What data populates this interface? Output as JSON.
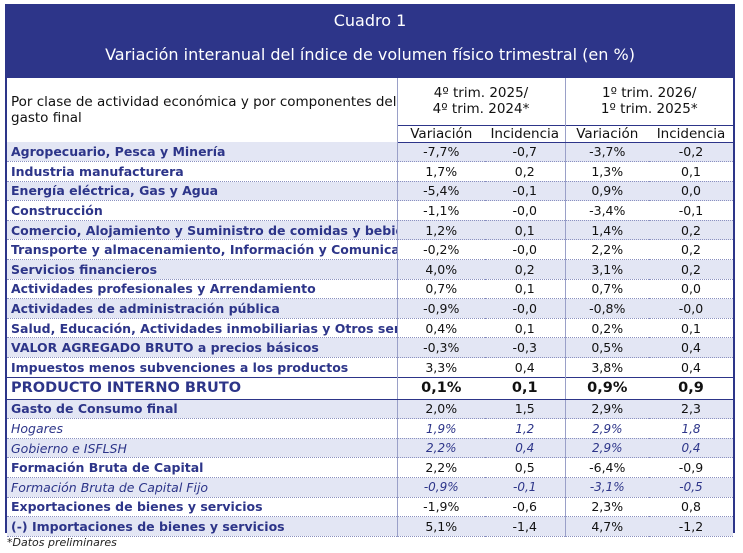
{
  "title": "Cuadro 1",
  "subtitle": "Variación interanual del índice de volumen físico trimestral (en %)",
  "row_header": "Por clase de actividad económica y por componentes del gasto final",
  "period1": "4º trim. 2025/ 4º trim. 2024*",
  "period2": "1º trim. 2026/ 1º trim. 2025*",
  "col_labels": {
    "variacion": "Variación",
    "incidencia": "Incidencia"
  },
  "rows": [
    {
      "name": "Agropecuario, Pesca y Minería",
      "v1": "-7,7%",
      "i1": "-0,7",
      "v2": "-3,7%",
      "i2": "-0,2"
    },
    {
      "name": "Industria manufacturera",
      "v1": "1,7%",
      "i1": "0,2",
      "v2": "1,3%",
      "i2": "0,1"
    },
    {
      "name": "Energía eléctrica, Gas y Agua",
      "v1": "-5,4%",
      "i1": "-0,1",
      "v2": "0,9%",
      "i2": "0,0"
    },
    {
      "name": "Construcción",
      "v1": "-1,1%",
      "i1": "-0,0",
      "v2": "-3,4%",
      "i2": "-0,1"
    },
    {
      "name": "Comercio, Alojamiento y Suministro de comidas y bebidas",
      "v1": "1,2%",
      "i1": "0,1",
      "v2": "1,4%",
      "i2": "0,2"
    },
    {
      "name": "Transporte y almacenamiento, Información y Comunicaciones",
      "v1": "-0,2%",
      "i1": "-0,0",
      "v2": "2,2%",
      "i2": "0,2"
    },
    {
      "name": "Servicios financieros",
      "v1": "4,0%",
      "i1": "0,2",
      "v2": "3,1%",
      "i2": "0,2"
    },
    {
      "name": "Actividades profesionales y Arrendamiento",
      "v1": "0,7%",
      "i1": "0,1",
      "v2": "0,7%",
      "i2": "0,0"
    },
    {
      "name": "Actividades de administración pública",
      "v1": "-0,9%",
      "i1": "-0,0",
      "v2": "-0,8%",
      "i2": "-0,0"
    },
    {
      "name": "Salud, Educación, Actividades inmobiliarias y Otros servicios",
      "v1": "0,4%",
      "i1": "0,1",
      "v2": "0,2%",
      "i2": "0,1"
    },
    {
      "name": "VALOR AGREGADO BRUTO a precios básicos",
      "v1": "-0,3%",
      "i1": "-0,3",
      "v2": "0,5%",
      "i2": "0,4"
    },
    {
      "name": "Impuestos menos subvenciones a los productos",
      "v1": "3,3%",
      "i1": "0,4",
      "v2": "3,8%",
      "i2": "0,4"
    },
    {
      "name": "PRODUCTO INTERNO BRUTO",
      "v1": "0,1%",
      "i1": "0,1",
      "v2": "0,9%",
      "i2": "0,9"
    },
    {
      "name": "Gasto de Consumo final",
      "v1": "2,0%",
      "i1": "1,5",
      "v2": "2,9%",
      "i2": "2,3"
    },
    {
      "name": "Hogares",
      "v1": "1,9%",
      "i1": "1,2",
      "v2": "2,9%",
      "i2": "1,8"
    },
    {
      "name": "Gobierno e ISFLSH",
      "v1": "2,2%",
      "i1": "0,4",
      "v2": "2,9%",
      "i2": "0,4"
    },
    {
      "name": "Formación Bruta de Capital",
      "v1": "2,2%",
      "i1": "0,5",
      "v2": "-6,4%",
      "i2": "-0,9"
    },
    {
      "name": "Formación Bruta de Capital Fijo",
      "v1": "-0,9%",
      "i1": "-0,1",
      "v2": "-3,1%",
      "i2": "-0,5"
    },
    {
      "name": "Exportaciones de bienes y servicios",
      "v1": "-1,9%",
      "i1": "-0,6",
      "v2": "2,3%",
      "i2": "0,8"
    },
    {
      "name": "(-) Importaciones de bienes y servicios",
      "v1": "5,1%",
      "i1": "-1,4",
      "v2": "4,7%",
      "i2": "-1,2"
    }
  ],
  "footnote": "*Datos preliminares",
  "colors": {
    "brand": "#2d3589",
    "shade": "#e3e6f4"
  }
}
